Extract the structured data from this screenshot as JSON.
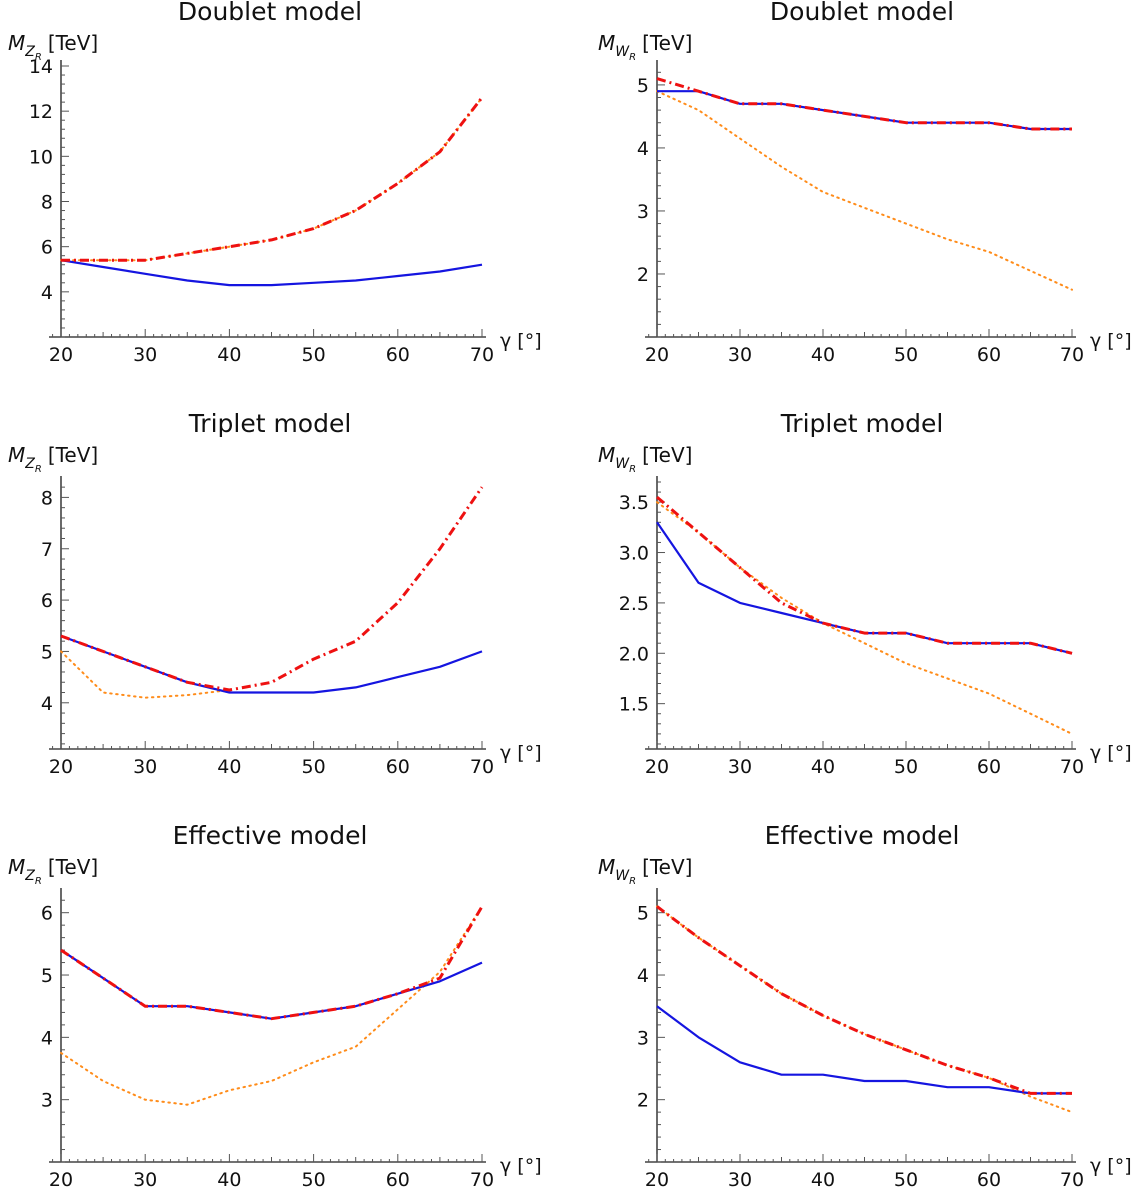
{
  "figure": {
    "series_colors": {
      "solid": "#1515e0",
      "dashed": "#ee1111",
      "dotted": "#ff8c1a"
    }
  },
  "chart_data": [
    {
      "type": "line",
      "title": "Doublet model",
      "ylabel_main": "M",
      "ylabel_sub": "Z",
      "ylabel_subsub": "R",
      "ylabel_unit": "[TeV]",
      "xlabel": "γ [°]",
      "xlim": [
        20,
        70
      ],
      "ylim": [
        2,
        14
      ],
      "xticks": [
        20,
        30,
        40,
        50,
        60,
        70
      ],
      "yticks": [
        4,
        6,
        8,
        10,
        12,
        14
      ],
      "ytick_labels": [
        "4",
        "6",
        "8",
        "10",
        "12",
        "14"
      ],
      "series": [
        {
          "style": "dotted",
          "x": [
            20,
            25,
            30,
            35,
            40,
            45,
            50,
            55,
            60,
            65,
            70
          ],
          "y": [
            5.4,
            5.4,
            5.4,
            5.7,
            6.0,
            6.3,
            6.8,
            7.6,
            8.8,
            10.2,
            12.6
          ]
        },
        {
          "style": "solid",
          "x": [
            20,
            25,
            30,
            35,
            40,
            45,
            50,
            55,
            60,
            65,
            70
          ],
          "y": [
            5.4,
            5.1,
            4.8,
            4.5,
            4.3,
            4.3,
            4.4,
            4.5,
            4.7,
            4.9,
            5.2
          ]
        },
        {
          "style": "dashed",
          "x": [
            20,
            25,
            30,
            35,
            40,
            45,
            50,
            55,
            60,
            65,
            70
          ],
          "y": [
            5.4,
            5.4,
            5.4,
            5.7,
            6.0,
            6.3,
            6.8,
            7.6,
            8.8,
            10.2,
            12.6
          ]
        }
      ]
    },
    {
      "type": "line",
      "title": "Doublet model",
      "ylabel_main": "M",
      "ylabel_sub": "W",
      "ylabel_subsub": "R",
      "ylabel_unit": "[TeV]",
      "xlabel": "γ [°]",
      "xlim": [
        20,
        70
      ],
      "ylim": [
        1,
        5.3
      ],
      "xticks": [
        20,
        30,
        40,
        50,
        60,
        70
      ],
      "yticks": [
        2,
        3,
        4,
        5
      ],
      "ytick_labels": [
        "2",
        "3",
        "4",
        "5"
      ],
      "series": [
        {
          "style": "dotted",
          "x": [
            20,
            25,
            30,
            35,
            40,
            45,
            50,
            55,
            60,
            65,
            70
          ],
          "y": [
            4.9,
            4.6,
            4.15,
            3.7,
            3.3,
            3.05,
            2.8,
            2.55,
            2.35,
            2.05,
            1.75
          ]
        },
        {
          "style": "solid",
          "x": [
            20,
            25,
            30,
            35,
            40,
            45,
            50,
            55,
            60,
            65,
            70
          ],
          "y": [
            4.9,
            4.9,
            4.7,
            4.7,
            4.6,
            4.5,
            4.4,
            4.4,
            4.4,
            4.3,
            4.3
          ]
        },
        {
          "style": "dashed",
          "x": [
            20,
            25,
            30,
            35,
            40,
            45,
            50,
            55,
            60,
            65,
            70
          ],
          "y": [
            5.1,
            4.9,
            4.7,
            4.7,
            4.6,
            4.5,
            4.4,
            4.4,
            4.4,
            4.3,
            4.3
          ]
        }
      ]
    },
    {
      "type": "line",
      "title": "Triplet model",
      "ylabel_main": "M",
      "ylabel_sub": "Z",
      "ylabel_subsub": "R",
      "ylabel_unit": "[TeV]",
      "xlabel": "γ [°]",
      "xlim": [
        20,
        70
      ],
      "ylim": [
        3.1,
        8.3
      ],
      "xticks": [
        20,
        30,
        40,
        50,
        60,
        70
      ],
      "yticks": [
        4,
        5,
        6,
        7,
        8
      ],
      "ytick_labels": [
        "4",
        "5",
        "6",
        "7",
        "8"
      ],
      "series": [
        {
          "style": "dotted",
          "x": [
            20,
            25,
            30,
            35,
            40
          ],
          "y": [
            5.0,
            4.2,
            4.1,
            4.15,
            4.25
          ]
        },
        {
          "style": "solid",
          "x": [
            20,
            25,
            30,
            35,
            40,
            45,
            50,
            55,
            60,
            65,
            70
          ],
          "y": [
            5.3,
            5.0,
            4.7,
            4.4,
            4.2,
            4.2,
            4.2,
            4.3,
            4.5,
            4.7,
            5.0
          ]
        },
        {
          "style": "dashed",
          "x": [
            20,
            25,
            30,
            35,
            40,
            45,
            50,
            55,
            60,
            65,
            70
          ],
          "y": [
            5.3,
            5.0,
            4.7,
            4.4,
            4.25,
            4.4,
            4.85,
            5.2,
            5.95,
            7.0,
            8.2
          ]
        }
      ]
    },
    {
      "type": "line",
      "title": "Triplet model",
      "ylabel_main": "M",
      "ylabel_sub": "W",
      "ylabel_subsub": "R",
      "ylabel_unit": "[TeV]",
      "xlabel": "γ [°]",
      "xlim": [
        20,
        70
      ],
      "ylim": [
        1.05,
        3.7
      ],
      "xticks": [
        20,
        30,
        40,
        50,
        60,
        70
      ],
      "yticks": [
        1.5,
        2.0,
        2.5,
        3.0,
        3.5
      ],
      "ytick_labels": [
        "1.5",
        "2.0",
        "2.5",
        "3.0",
        "3.5"
      ],
      "series": [
        {
          "style": "dotted",
          "x": [
            20,
            25,
            30,
            35,
            40,
            45,
            50,
            55,
            60,
            65,
            70
          ],
          "y": [
            3.5,
            3.2,
            2.85,
            2.55,
            2.3,
            2.1,
            1.9,
            1.75,
            1.6,
            1.4,
            1.2
          ]
        },
        {
          "style": "solid",
          "x": [
            20,
            25,
            30,
            35,
            40,
            45,
            50,
            55,
            60,
            65,
            70
          ],
          "y": [
            3.3,
            2.7,
            2.5,
            2.4,
            2.3,
            2.2,
            2.2,
            2.1,
            2.1,
            2.1,
            2.0
          ]
        },
        {
          "style": "dashed",
          "x": [
            20,
            25,
            30,
            35,
            40,
            45,
            50,
            55,
            60,
            65,
            70
          ],
          "y": [
            3.55,
            3.2,
            2.85,
            2.5,
            2.3,
            2.2,
            2.2,
            2.1,
            2.1,
            2.1,
            2.0
          ]
        }
      ]
    },
    {
      "type": "line",
      "title": "Effective model",
      "ylabel_main": "M",
      "ylabel_sub": "Z",
      "ylabel_subsub": "R",
      "ylabel_unit": "[TeV]",
      "xlabel": "γ [°]",
      "xlim": [
        20,
        70
      ],
      "ylim": [
        2.0,
        6.3
      ],
      "xticks": [
        20,
        30,
        40,
        50,
        60,
        70
      ],
      "yticks": [
        3,
        4,
        5,
        6
      ],
      "ytick_labels": [
        "3",
        "4",
        "5",
        "6"
      ],
      "series": [
        {
          "style": "dotted",
          "x": [
            20,
            25,
            30,
            35,
            40,
            45,
            50,
            55,
            60,
            65,
            70
          ],
          "y": [
            3.75,
            3.3,
            3.0,
            2.92,
            3.15,
            3.3,
            3.6,
            3.85,
            4.45,
            5.05,
            6.1
          ]
        },
        {
          "style": "solid",
          "x": [
            20,
            25,
            30,
            35,
            40,
            45,
            50,
            55,
            60,
            65,
            70
          ],
          "y": [
            5.4,
            4.95,
            4.5,
            4.5,
            4.4,
            4.3,
            4.4,
            4.5,
            4.7,
            4.9,
            5.2
          ]
        },
        {
          "style": "dashed",
          "x": [
            20,
            25,
            30,
            35,
            40,
            45,
            50,
            55,
            60,
            65,
            70
          ],
          "y": [
            5.4,
            4.95,
            4.5,
            4.5,
            4.4,
            4.3,
            4.4,
            4.5,
            4.7,
            4.95,
            6.1
          ]
        }
      ]
    },
    {
      "type": "line",
      "title": "Effective model",
      "ylabel_main": "M",
      "ylabel_sub": "W",
      "ylabel_subsub": "R",
      "ylabel_unit": "[TeV]",
      "xlabel": "γ [°]",
      "xlim": [
        20,
        70
      ],
      "ylim": [
        1.0,
        5.3
      ],
      "xticks": [
        20,
        30,
        40,
        50,
        60,
        70
      ],
      "yticks": [
        2,
        3,
        4,
        5
      ],
      "ytick_labels": [
        "2",
        "3",
        "4",
        "5"
      ],
      "series": [
        {
          "style": "dotted",
          "x": [
            20,
            25,
            30,
            35,
            40,
            45,
            50,
            55,
            60,
            65,
            70
          ],
          "y": [
            5.1,
            4.6,
            4.15,
            3.7,
            3.35,
            3.05,
            2.8,
            2.55,
            2.35,
            2.05,
            1.8
          ]
        },
        {
          "style": "solid",
          "x": [
            20,
            25,
            30,
            35,
            40,
            45,
            50,
            55,
            60,
            65,
            70
          ],
          "y": [
            3.5,
            3.0,
            2.6,
            2.4,
            2.4,
            2.3,
            2.3,
            2.2,
            2.2,
            2.1,
            2.1
          ]
        },
        {
          "style": "dashed",
          "x": [
            20,
            25,
            30,
            35,
            40,
            45,
            50,
            55,
            60,
            65,
            70
          ],
          "y": [
            5.1,
            4.6,
            4.15,
            3.7,
            3.35,
            3.05,
            2.8,
            2.55,
            2.35,
            2.1,
            2.1
          ]
        }
      ]
    }
  ]
}
